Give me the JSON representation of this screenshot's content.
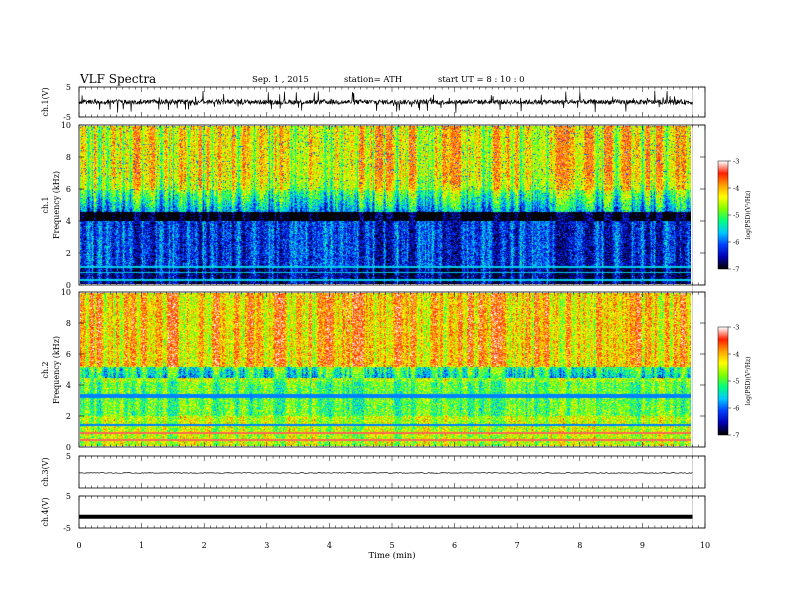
{
  "header": {
    "title": "VLF  Spectra",
    "date": "Sep. 1  , 2015",
    "station": "station= ATH",
    "start": "start  UT  =   8  : 10 : 0"
  },
  "chart_data": [
    {
      "type": "line",
      "name": "ch.1(V)",
      "ylabel": "ch.1(V)",
      "ylim": [
        -5,
        5
      ],
      "ytick_labels": [
        "5",
        "-5"
      ],
      "description_level": "noisy trace near 0 V, spikes up to about ±4 V",
      "color": "#000000"
    },
    {
      "type": "heatmap",
      "name": "ch.1 spectrogram",
      "ylabel_lines": [
        "ch.1",
        "Frequency  (kHz)"
      ],
      "ylim": [
        0,
        10
      ],
      "ytick_labels": [
        "0",
        "2",
        "4",
        "6",
        "8",
        "10"
      ],
      "colorbar": {
        "label": "log(PSD)(V²/Hz)",
        "range": [
          -7,
          -3
        ],
        "tick_labels": [
          "-3",
          "-4",
          "-5",
          "-6",
          "-7"
        ]
      },
      "dominant_levels": {
        "above_5kHz": "-4 to -3.5",
        "1_to_5kHz": "-6.5 to -7",
        "below_1kHz": "-7"
      }
    },
    {
      "type": "heatmap",
      "name": "ch.2 spectrogram",
      "ylabel_lines": [
        "ch.2",
        "Frequency  (kHz)"
      ],
      "ylim": [
        0,
        10
      ],
      "ytick_labels": [
        "0",
        "2",
        "4",
        "6",
        "8",
        "10"
      ],
      "colorbar": {
        "label": "log(PSD)(V²/Hz)",
        "range": [
          -7,
          -3
        ],
        "tick_labels": [
          "-3",
          "-4",
          "-5",
          "-6",
          "-7"
        ]
      },
      "dominant_levels": {
        "above_5kHz": "-3.5 to -3",
        "2_to_5kHz": "-5 to -5.5",
        "below_2kHz": "-5 to -4.5"
      }
    },
    {
      "type": "line",
      "name": "ch.3(V)",
      "ylabel": "ch.3(V)",
      "ylim": [
        -5,
        5
      ],
      "ytick_labels": [
        "5"
      ],
      "level": -0.3,
      "color": "#000000"
    },
    {
      "type": "line",
      "name": "ch.4(V)",
      "ylabel": "ch.4(V)",
      "ylim": [
        -5,
        5
      ],
      "ytick_labels": [
        "5",
        "-5"
      ],
      "level": -1.5,
      "color": "#000000"
    }
  ],
  "xaxis": {
    "label": "Time  (min)",
    "xlim": [
      0,
      10
    ],
    "data_end": 9.8,
    "tick_labels": [
      "0",
      "1",
      "2",
      "3",
      "4",
      "5",
      "6",
      "7",
      "8",
      "9",
      "10"
    ]
  },
  "colormap": [
    "#000000",
    "#0000b4",
    "#0040ff",
    "#00c8ff",
    "#00ff80",
    "#80ff00",
    "#ffff00",
    "#ffa000",
    "#ff2000",
    "#ffffff"
  ]
}
